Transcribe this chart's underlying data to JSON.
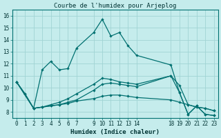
{
  "title": "Courbe de l'humidex pour Arjeplog",
  "xlabel": "Humidex (Indice chaleur)",
  "bg_color": "#c5ecec",
  "grid_color": "#a0d4d4",
  "line_color": "#007070",
  "spine_color": "#007070",
  "ylim": [
    7.5,
    16.5
  ],
  "xlim": [
    -0.5,
    23.5
  ],
  "yticks": [
    8,
    9,
    10,
    11,
    12,
    13,
    14,
    15,
    16
  ],
  "xticks": [
    0,
    1,
    2,
    3,
    4,
    5,
    6,
    7,
    9,
    10,
    11,
    12,
    13,
    14,
    18,
    19,
    20,
    21,
    22,
    23
  ],
  "xtick_labels": [
    "0",
    "1",
    "2",
    "3",
    "4",
    "5",
    "6",
    "7",
    "9",
    "10",
    "11",
    "12",
    "13",
    "14",
    "18",
    "19",
    "20",
    "21",
    "22",
    "23"
  ],
  "series1_x": [
    0,
    1,
    2,
    3,
    4,
    5,
    6,
    7,
    9,
    10,
    11,
    12,
    13,
    14,
    18,
    19,
    20,
    21,
    22,
    23
  ],
  "series1_y": [
    10.5,
    9.5,
    8.3,
    11.5,
    12.2,
    11.5,
    11.6,
    13.3,
    14.6,
    15.7,
    14.3,
    14.6,
    13.5,
    12.7,
    11.9,
    9.6,
    7.8,
    8.5,
    7.8,
    7.7
  ],
  "series2_x": [
    0,
    1,
    2,
    3,
    4,
    5,
    6,
    7,
    9,
    10,
    11,
    12,
    13,
    14,
    18,
    19,
    20,
    21,
    22,
    23
  ],
  "series2_y": [
    10.5,
    9.5,
    8.3,
    8.4,
    8.5,
    8.6,
    8.8,
    9.0,
    9.8,
    10.3,
    10.4,
    10.3,
    10.2,
    10.1,
    11.0,
    9.6,
    7.8,
    8.5,
    7.8,
    7.7
  ],
  "series3_x": [
    0,
    2,
    3,
    4,
    5,
    6,
    7,
    9,
    10,
    11,
    12,
    13,
    14,
    18,
    19,
    20,
    21,
    22,
    23
  ],
  "series3_y": [
    10.5,
    8.3,
    8.4,
    8.5,
    8.6,
    8.7,
    8.9,
    9.1,
    9.3,
    9.4,
    9.4,
    9.3,
    9.2,
    9.0,
    8.8,
    8.6,
    8.4,
    8.3,
    8.1
  ],
  "series4_x": [
    0,
    2,
    3,
    4,
    5,
    6,
    7,
    9,
    10,
    11,
    12,
    13,
    14,
    18,
    19,
    20,
    21,
    22,
    23
  ],
  "series4_y": [
    10.5,
    8.3,
    8.4,
    8.6,
    8.8,
    9.1,
    9.5,
    10.3,
    10.8,
    10.7,
    10.5,
    10.4,
    10.3,
    11.0,
    10.2,
    8.6,
    8.4,
    8.3,
    8.1
  ],
  "tick_fontsize": 5.5,
  "xlabel_fontsize": 6.5,
  "title_fontsize": 6.5,
  "linewidth": 0.9,
  "markersize": 2.2
}
